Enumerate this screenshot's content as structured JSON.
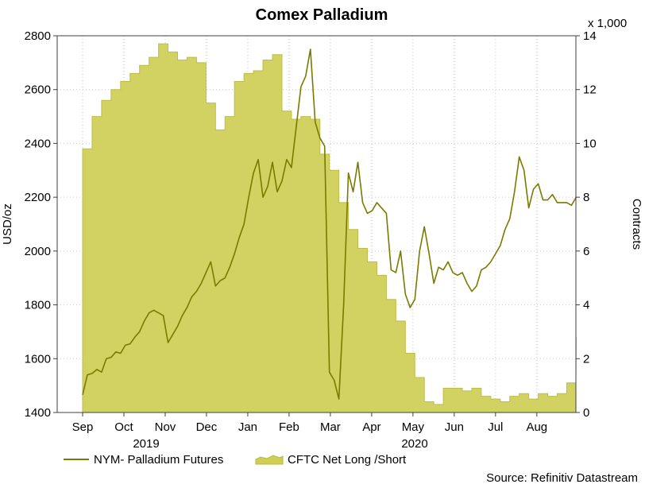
{
  "chart_data": {
    "type": "line+area",
    "title": "Comex Palladium",
    "source": "Source: Refinitiv Datastream",
    "y_left": {
      "label": "USD/oz",
      "range": [
        1400,
        2800
      ],
      "ticks": [
        "1400",
        "1600",
        "1800",
        "2000",
        "2200",
        "2400",
        "2600",
        "2800"
      ]
    },
    "y_right": {
      "label": "Contracts",
      "unit_note": "x 1,000",
      "range": [
        0,
        14
      ],
      "ticks": [
        "0",
        "2",
        "4",
        "6",
        "8",
        "10",
        "12",
        "14"
      ]
    },
    "x_axis": {
      "months": [
        "Sep",
        "Oct",
        "Nov",
        "Dec",
        "Jan",
        "Feb",
        "Mar",
        "Apr",
        "May",
        "Jun",
        "Jul",
        "Aug"
      ],
      "years": [
        "2019",
        "2020"
      ],
      "range_weeks": [
        0,
        52
      ]
    },
    "grid": true,
    "legend_position": "bottom-left",
    "colors": {
      "line": "#7a7a00",
      "area": "#cfcf55",
      "area_stroke": "#b8b83a",
      "grid": "#c8c8c8",
      "frame": "#404040"
    },
    "series": [
      {
        "name": "NYM- Palladium Futures",
        "type": "line",
        "axis": "left",
        "x_weeks": [
          0,
          0.5,
          1,
          1.5,
          2,
          2.5,
          3,
          3.5,
          4,
          4.5,
          5,
          5.5,
          6,
          6.5,
          7,
          7.5,
          8,
          8.5,
          9,
          9.5,
          10,
          10.5,
          11,
          11.5,
          12,
          12.5,
          13,
          13.5,
          14,
          14.5,
          15,
          15.5,
          16,
          16.5,
          17,
          17.5,
          18,
          18.5,
          19,
          19.5,
          20,
          20.5,
          21,
          21.5,
          22,
          22.5,
          23,
          23.5,
          24,
          24.5,
          25,
          25.5,
          26,
          26.5,
          27,
          27.5,
          28,
          28.5,
          29,
          29.5,
          30,
          30.5,
          31,
          31.5,
          32,
          32.5,
          33,
          33.5,
          34,
          34.5,
          35,
          35.5,
          36,
          36.5,
          37,
          37.5,
          38,
          38.5,
          39,
          39.5,
          40,
          40.5,
          41,
          41.5,
          42,
          42.5,
          43,
          43.5,
          44,
          44.5,
          45,
          45.5,
          46,
          46.5,
          47,
          47.5,
          48,
          48.5,
          49,
          49.5,
          50,
          50.5,
          51,
          51.5,
          52
        ],
        "values": [
          1465,
          1540,
          1545,
          1560,
          1550,
          1600,
          1605,
          1625,
          1620,
          1650,
          1655,
          1680,
          1700,
          1740,
          1770,
          1780,
          1770,
          1760,
          1660,
          1690,
          1720,
          1760,
          1790,
          1830,
          1850,
          1880,
          1920,
          1960,
          1870,
          1890,
          1900,
          1940,
          1990,
          2050,
          2100,
          2200,
          2290,
          2340,
          2200,
          2240,
          2330,
          2220,
          2260,
          2340,
          2310,
          2460,
          2610,
          2650,
          2750,
          2480,
          2420,
          2390,
          1550,
          1520,
          1450,
          1800,
          2290,
          2220,
          2330,
          2180,
          2140,
          2150,
          2180,
          2160,
          2140,
          1930,
          1920,
          2000,
          1840,
          1790,
          1820,
          2000,
          2090,
          1990,
          1880,
          1940,
          1930,
          1960,
          1920,
          1910,
          1920,
          1880,
          1850,
          1870,
          1930,
          1940,
          1960,
          1990,
          2020,
          2080,
          2120,
          2220,
          2350,
          2300,
          2160,
          2230,
          2250,
          2190,
          2190,
          2210,
          2180,
          2180,
          2180,
          2170,
          2200
        ],
        "x_note": "weeks since start of Sep 2019 (first tick = Sep)"
      },
      {
        "name": "CFTC Net Long /Short",
        "type": "area",
        "axis": "right",
        "x_weeks": [
          0,
          1,
          2,
          3,
          4,
          5,
          6,
          7,
          8,
          9,
          10,
          11,
          12,
          13,
          14,
          15,
          16,
          17,
          18,
          19,
          20,
          21,
          22,
          23,
          24,
          25,
          26,
          27,
          28,
          29,
          30,
          31,
          32,
          33,
          34,
          35,
          36,
          37,
          38,
          39,
          40,
          41,
          42,
          43,
          44,
          45,
          46,
          47,
          48,
          49,
          50,
          51,
          52
        ],
        "values": [
          9.8,
          11.0,
          11.6,
          12.0,
          12.3,
          12.6,
          12.9,
          13.2,
          13.7,
          13.4,
          13.1,
          13.2,
          13.0,
          11.5,
          10.5,
          11.0,
          12.3,
          12.6,
          12.7,
          13.1,
          13.3,
          11.2,
          10.9,
          11.0,
          10.9,
          9.6,
          9.0,
          7.8,
          6.8,
          6.1,
          5.6,
          5.1,
          4.2,
          3.4,
          2.2,
          1.3,
          0.4,
          0.3,
          0.9,
          0.9,
          0.8,
          0.9,
          0.6,
          0.5,
          0.4,
          0.6,
          0.7,
          0.5,
          0.7,
          0.6,
          0.7,
          1.1,
          2.8
        ]
      }
    ]
  }
}
